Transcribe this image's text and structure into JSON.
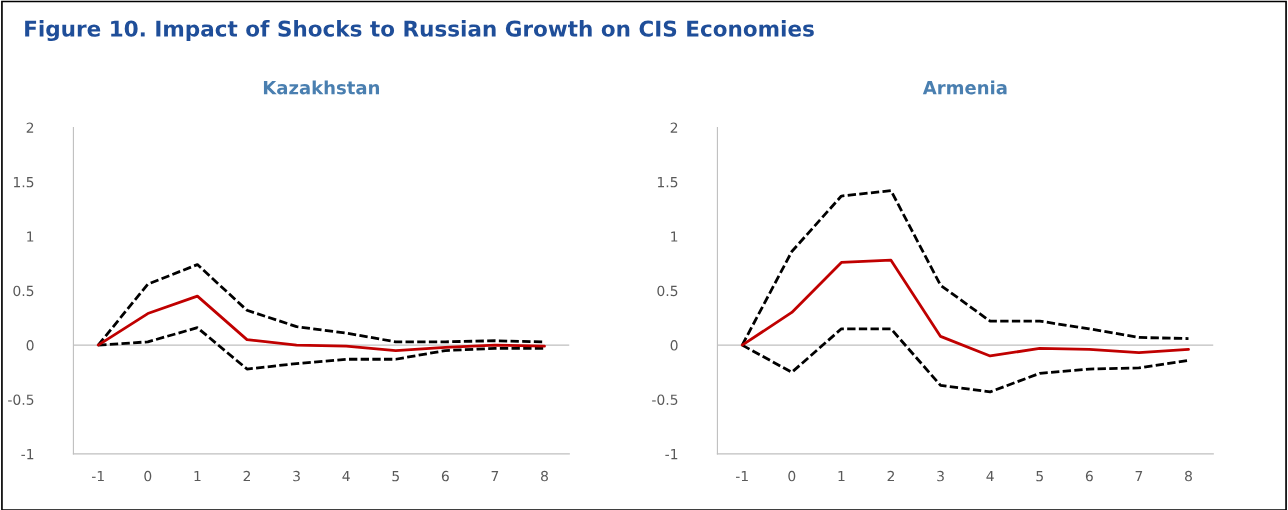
{
  "chart_data": [
    {
      "type": "line",
      "title": "Kazakhstan",
      "annotations": [
        "Figure 10. Impact of Shocks to Russian Growth on CIS Economies"
      ],
      "categories": [
        "-1",
        "0",
        "1",
        "2",
        "3",
        "4",
        "5",
        "6",
        "7",
        "8"
      ],
      "ylim": [
        -1,
        2
      ],
      "yticks": [
        -1,
        -0.5,
        0,
        0.5,
        1,
        1.5,
        2
      ],
      "grid": false,
      "marker": "none",
      "ref_lines": [
        {
          "axis": "y",
          "value": 0,
          "color": "#bfbfbf",
          "line_style": "solid"
        }
      ],
      "series": [
        {
          "color": "#000000",
          "line_style": "dashed",
          "values": [
            0,
            0.56,
            0.74,
            0.32,
            0.17,
            0.11,
            0.03,
            0.03,
            0.04,
            0.03
          ]
        },
        {
          "color": "#000000",
          "line_style": "dashed",
          "values": [
            0,
            0.03,
            0.16,
            -0.22,
            -0.17,
            -0.13,
            -0.13,
            -0.05,
            -0.03,
            -0.03
          ]
        },
        {
          "color": "#c00000",
          "line_style": "solid",
          "values": [
            0,
            0.29,
            0.45,
            0.05,
            0.0,
            -0.01,
            -0.05,
            -0.02,
            0.0,
            -0.01
          ]
        }
      ]
    },
    {
      "type": "line",
      "title": "Armenia",
      "categories": [
        "-1",
        "0",
        "1",
        "2",
        "3",
        "4",
        "5",
        "6",
        "7",
        "8"
      ],
      "ylim": [
        -1,
        2
      ],
      "yticks": [
        -1,
        -0.5,
        0,
        0.5,
        1,
        1.5,
        2
      ],
      "grid": false,
      "marker": "none",
      "ref_lines": [
        {
          "axis": "y",
          "value": 0,
          "color": "#bfbfbf",
          "line_style": "solid"
        }
      ],
      "series": [
        {
          "color": "#000000",
          "line_style": "dashed",
          "values": [
            0,
            0.86,
            1.37,
            1.42,
            0.55,
            0.22,
            0.22,
            0.15,
            0.07,
            0.06
          ]
        },
        {
          "color": "#000000",
          "line_style": "dashed",
          "values": [
            0,
            -0.25,
            0.15,
            0.15,
            -0.37,
            -0.43,
            -0.26,
            -0.22,
            -0.21,
            -0.14
          ]
        },
        {
          "color": "#c00000",
          "line_style": "solid",
          "values": [
            0,
            0.3,
            0.76,
            0.78,
            0.08,
            -0.1,
            -0.03,
            -0.04,
            -0.07,
            -0.04
          ]
        }
      ]
    }
  ]
}
